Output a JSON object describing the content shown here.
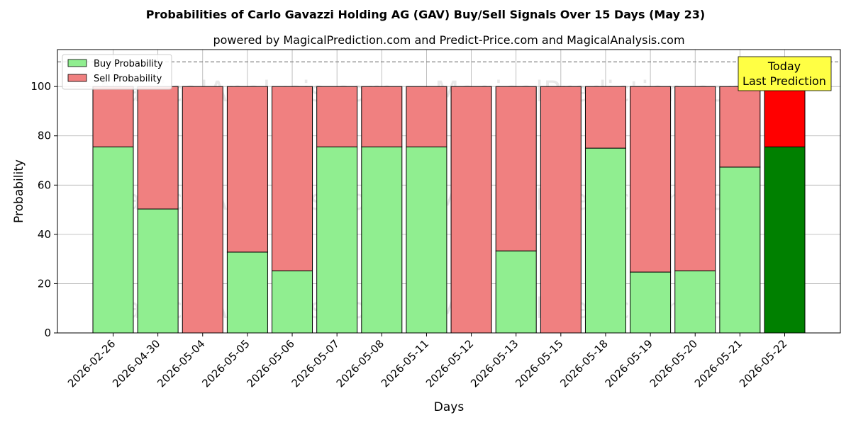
{
  "chart_data": {
    "type": "bar",
    "title": "Probabilities of Carlo Gavazzi Holding AG (GAV) Buy/Sell Signals Over 15 Days (May 23)",
    "subtitle": "powered by MagicalPrediction.com and Predict-Price.com and MagicalAnalysis.com",
    "xlabel": "Days",
    "ylabel": "Probability",
    "ylim": [
      0,
      115
    ],
    "yticks": [
      0,
      20,
      40,
      60,
      80,
      100
    ],
    "grid": true,
    "stacked": true,
    "categories": [
      "2026-02-26",
      "2026-04-30",
      "2026-05-04",
      "2026-05-05",
      "2026-05-06",
      "2026-05-07",
      "2026-05-08",
      "2026-05-11",
      "2026-05-12",
      "2026-05-13",
      "2026-05-15",
      "2026-05-18",
      "2026-05-19",
      "2026-05-20",
      "2026-05-21",
      "2026-05-22"
    ],
    "series": [
      {
        "name": "Buy Probability",
        "color": "#90ee90",
        "highlight_color": "#008000",
        "values": [
          75.5,
          50.3,
          0,
          32.8,
          25.2,
          75.5,
          75.5,
          75.5,
          0,
          33.3,
          0,
          75.0,
          24.7,
          25.2,
          67.3,
          75.5
        ]
      },
      {
        "name": "Sell Probability",
        "color": "#f08080",
        "highlight_color": "#ff0000",
        "values": [
          24.5,
          49.7,
          100,
          67.2,
          74.8,
          24.5,
          24.5,
          24.5,
          100,
          66.7,
          100,
          25.0,
          75.3,
          74.8,
          32.7,
          24.5
        ]
      }
    ],
    "highlight_index": 15,
    "reference_line": {
      "y": 110,
      "style": "dashed",
      "color": "#808080"
    },
    "legend": {
      "placement": "top-left",
      "entries": [
        "Buy Probability",
        "Sell Probability"
      ]
    },
    "annotation": {
      "text_lines": [
        "Today",
        "Last Prediction"
      ],
      "placement": "top-right",
      "background": "#ffff44"
    },
    "watermarks": [
      "MagicalAnalysis.com",
      "MagicalPrediction.com"
    ]
  }
}
